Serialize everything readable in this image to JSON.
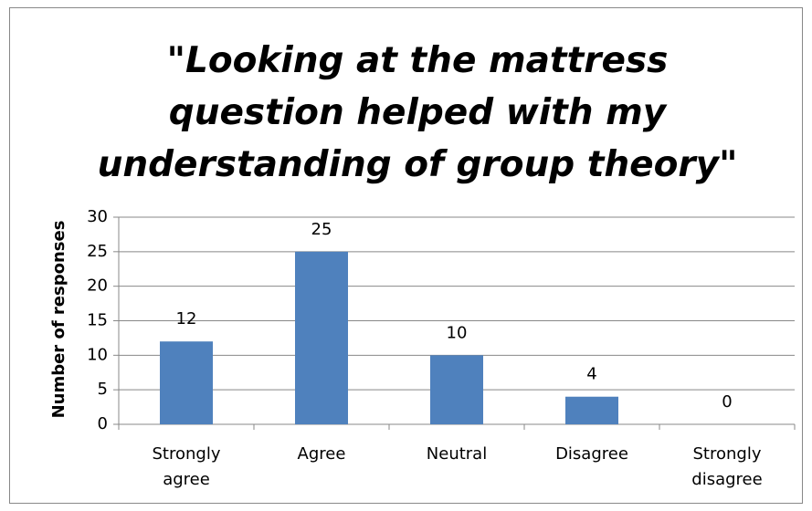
{
  "chart_data": {
    "type": "bar",
    "title": "\"Looking at the mattress question helped with my understanding of group theory\"",
    "y_label": "Number of responses",
    "categories": [
      "Strongly agree",
      "Agree",
      "Neutral",
      "Disagree",
      "Strongly disagree"
    ],
    "values": [
      12,
      25,
      10,
      4,
      0
    ],
    "color": "#4f81bd",
    "ylim": [
      0,
      30
    ],
    "yticks": [
      0,
      5,
      10,
      15,
      20,
      25,
      30
    ],
    "grid": true
  }
}
